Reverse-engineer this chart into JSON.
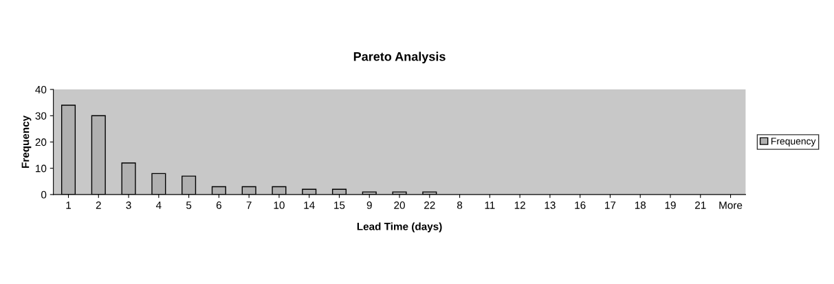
{
  "chart_data": {
    "type": "bar",
    "title": "Pareto Analysis",
    "xlabel": "Lead Time (days)",
    "ylabel": "Frequency",
    "categories": [
      "1",
      "2",
      "3",
      "4",
      "5",
      "6",
      "7",
      "10",
      "14",
      "15",
      "9",
      "20",
      "22",
      "8",
      "11",
      "12",
      "13",
      "16",
      "17",
      "18",
      "19",
      "21",
      "More"
    ],
    "series": [
      {
        "name": "Frequency",
        "color": "#b0b0b0",
        "values": [
          34,
          30,
          12,
          8,
          7,
          3,
          3,
          3,
          2,
          2,
          1,
          1,
          1,
          0,
          0,
          0,
          0,
          0,
          0,
          0,
          0,
          0,
          0
        ]
      }
    ],
    "ylim": [
      0,
      40
    ],
    "yticks": [
      0,
      10,
      20,
      30,
      40
    ],
    "grid": false,
    "legend": "right"
  }
}
